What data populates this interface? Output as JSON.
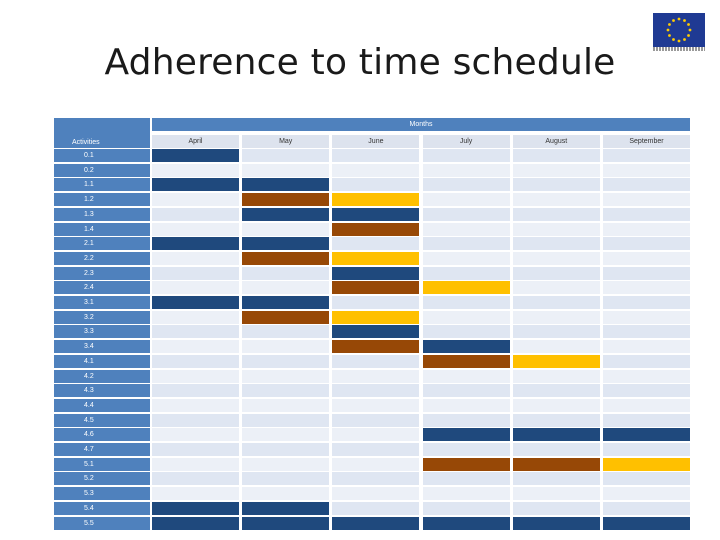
{
  "title": "Adherence to time schedule",
  "logo": {
    "name": "eu-flag-icon",
    "colors": {
      "field": "#1f3a93",
      "stars": "#ffcc00"
    }
  },
  "table": {
    "months_header": "Months",
    "activities_header": "Activities",
    "months": [
      "April",
      "May",
      "June",
      "July",
      "August",
      "September"
    ],
    "colors": {
      "empty_a": "#dfe6f2",
      "empty_b": "#ecf0f7",
      "blue": "#1f497d",
      "brown": "#974806",
      "yellow": "#ffc000",
      "header": "#4f81bd"
    },
    "rows": [
      {
        "label": "0.1",
        "cells": [
          "blue",
          "",
          "",
          "",
          "",
          ""
        ]
      },
      {
        "label": "0.2",
        "cells": [
          "",
          "",
          "",
          "",
          "",
          ""
        ]
      },
      {
        "label": "1.1",
        "cells": [
          "blue",
          "blue",
          "",
          "",
          "",
          ""
        ]
      },
      {
        "label": "1.2",
        "cells": [
          "",
          "brown",
          "yellow",
          "",
          "",
          ""
        ]
      },
      {
        "label": "1.3",
        "cells": [
          "",
          "blue",
          "blue",
          "",
          "",
          ""
        ]
      },
      {
        "label": "1.4",
        "cells": [
          "",
          "",
          "brown",
          "",
          "",
          ""
        ]
      },
      {
        "label": "2.1",
        "cells": [
          "blue",
          "blue",
          "",
          "",
          "",
          ""
        ]
      },
      {
        "label": "2.2",
        "cells": [
          "",
          "brown",
          "yellow",
          "",
          "",
          ""
        ]
      },
      {
        "label": "2.3",
        "cells": [
          "",
          "",
          "blue",
          "",
          "",
          ""
        ]
      },
      {
        "label": "2.4",
        "cells": [
          "",
          "",
          "brown",
          "yellow",
          "",
          ""
        ]
      },
      {
        "label": "3.1",
        "cells": [
          "blue",
          "blue",
          "",
          "",
          "",
          ""
        ]
      },
      {
        "label": "3.2",
        "cells": [
          "",
          "brown",
          "yellow",
          "",
          "",
          ""
        ]
      },
      {
        "label": "3.3",
        "cells": [
          "",
          "",
          "blue",
          "",
          "",
          ""
        ]
      },
      {
        "label": "3.4",
        "cells": [
          "",
          "",
          "brown",
          "blue",
          "",
          ""
        ]
      },
      {
        "label": "4.1",
        "cells": [
          "",
          "",
          "",
          "brown",
          "yellow",
          ""
        ]
      },
      {
        "label": "4.2",
        "cells": [
          "",
          "",
          "",
          "",
          "",
          ""
        ]
      },
      {
        "label": "4.3",
        "cells": [
          "",
          "",
          "",
          "",
          "",
          ""
        ]
      },
      {
        "label": "4.4",
        "cells": [
          "",
          "",
          "",
          "",
          "",
          ""
        ]
      },
      {
        "label": "4.5",
        "cells": [
          "",
          "",
          "",
          "",
          "",
          ""
        ]
      },
      {
        "label": "4.6",
        "cells": [
          "",
          "",
          "",
          "blue",
          "blue",
          "blue"
        ]
      },
      {
        "label": "4.7",
        "cells": [
          "",
          "",
          "",
          "",
          "",
          ""
        ]
      },
      {
        "label": "5.1",
        "cells": [
          "",
          "",
          "",
          "brown",
          "brown",
          "yellow"
        ]
      },
      {
        "label": "5.2",
        "cells": [
          "",
          "",
          "",
          "",
          "",
          ""
        ]
      },
      {
        "label": "5.3",
        "cells": [
          "",
          "",
          "",
          "",
          "",
          ""
        ]
      },
      {
        "label": "5.4",
        "cells": [
          "blue",
          "blue",
          "",
          "",
          "",
          ""
        ]
      },
      {
        "label": "5.5",
        "cells": [
          "blue",
          "blue",
          "blue",
          "blue",
          "blue",
          "blue"
        ]
      }
    ]
  }
}
